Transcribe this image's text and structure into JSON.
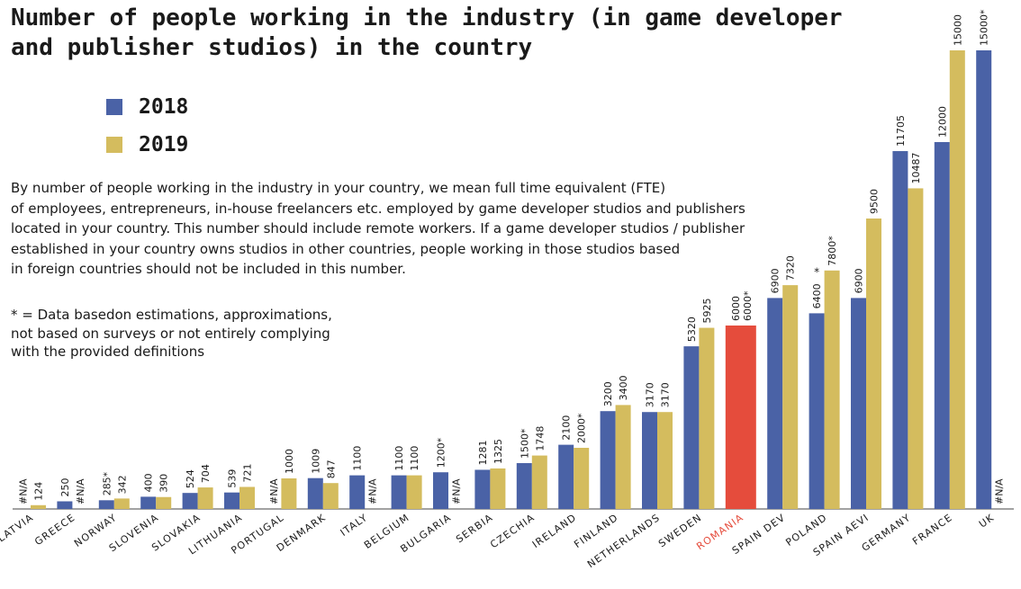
{
  "header": {
    "title": "Number of people working in the industry (in game developer and publisher studios) in the country"
  },
  "notes": {
    "description_lines": [
      "By number of people working in the industry in your country, we mean full time equivalent (FTE)",
      "of employees, entrepreneurs, in-house freelancers etc. employed by game developer studios and publishers",
      "located in your country. This number should include remote workers. If a game developer studios / publisher",
      "established in your country owns studios in other countries, people working in those studios based",
      "in foreign countries should not be included in this number."
    ],
    "footnote_lines": [
      "* = Data basedon estimations, approximations,",
      "not based on surveys or not entirely complying",
      "with the provided definitions"
    ]
  },
  "colors": {
    "series_2018": "#4a62a6",
    "series_2019": "#d4bc5e",
    "highlight": "#e54c3c",
    "highlight_label": "#e54c3c",
    "text": "#1a1a1a",
    "baseline": "#444444"
  },
  "chart_data": {
    "type": "bar",
    "title": "Number of people working in the industry (in game developer and publisher studios) in the country",
    "xlabel": "",
    "ylabel": "",
    "ylim": [
      0,
      15000
    ],
    "grid": false,
    "legend_position": "top-left",
    "highlight_category": "ROMANIA",
    "categories": [
      "LATVIA",
      "GREECE",
      "NORWAY",
      "SLOVENIA",
      "SLOVAKIA",
      "LITHUANIA",
      "PORTUGAL",
      "DENMARK",
      "ITALY",
      "BELGIUM",
      "BULGARIA",
      "SERBIA",
      "CZECHIA",
      "IRELAND",
      "FINLAND",
      "NETHERLANDS",
      "SWEDEN",
      "ROMANIA",
      "SPAIN DEV",
      "POLAND",
      "SPAIN AEVI",
      "GERMANY",
      "FRANCE",
      "UK"
    ],
    "series": [
      {
        "name": "2018",
        "values": [
          null,
          250,
          285,
          400,
          524,
          539,
          null,
          1009,
          1100,
          1100,
          1200,
          1281,
          1500,
          2100,
          3200,
          3170,
          5320,
          6000,
          6900,
          6400,
          6900,
          11705,
          12000,
          15000
        ],
        "labels": [
          "#N/A",
          "250",
          "285*",
          "400",
          "524",
          "539",
          "#N/A",
          "1009",
          "1100",
          "1100",
          "1200*",
          "1281",
          "1500*",
          "2100",
          "3200",
          "3170",
          "5320",
          "6000",
          "6900",
          "6400",
          "6900",
          "11705",
          "12000",
          "15000*"
        ]
      },
      {
        "name": "2019",
        "values": [
          124,
          null,
          342,
          390,
          704,
          721,
          1000,
          847,
          null,
          1100,
          null,
          1325,
          1748,
          2000,
          3400,
          3170,
          5925,
          6000,
          7320,
          7800,
          9500,
          10487,
          15000,
          null
        ],
        "labels": [
          "124",
          "#N/A",
          "342",
          "390",
          "704",
          "721",
          "1000",
          "847",
          "#N/A",
          "1100",
          "#N/A",
          "1325",
          "1748",
          "2000*",
          "3400",
          "3170",
          "5925",
          "6000*",
          "7320",
          "7800*",
          "9500",
          "10487",
          "15000",
          "#N/A"
        ]
      }
    ],
    "annotations": [
      {
        "category": "POLAND",
        "text": "*"
      }
    ]
  }
}
